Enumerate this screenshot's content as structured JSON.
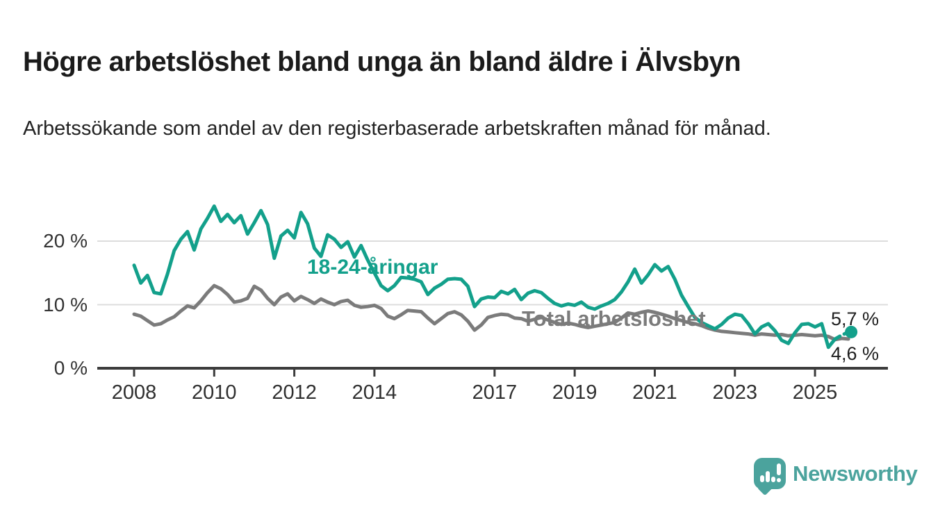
{
  "chart_data": {
    "type": "line",
    "title": "Högre arbetslöshet bland unga än bland äldre i Älvsbyn",
    "subtitle": "Arbetssökande som andel av den registerbaserade arbetskraften månad för månad.",
    "y_unit": "%",
    "ylim": [
      0,
      27.5
    ],
    "xlim": [
      2007.95,
      2026.2
    ],
    "grid": "horizontal gridlines at 10 and 20, baseline axis at 0",
    "legend_position": "inline labels on lines",
    "y_ticks": [
      {
        "value": 20,
        "label": "20 %"
      },
      {
        "value": 10,
        "label": "10 %"
      },
      {
        "value": 0,
        "label": "0 %"
      }
    ],
    "x_ticks": [
      {
        "year": 2008,
        "label": "2008"
      },
      {
        "year": 2010,
        "label": "2010"
      },
      {
        "year": 2012,
        "label": "2012"
      },
      {
        "year": 2014,
        "label": "2014"
      },
      {
        "year": 2017,
        "label": "2017"
      },
      {
        "year": 2019,
        "label": "2019"
      },
      {
        "year": 2021,
        "label": "2021"
      },
      {
        "year": 2023,
        "label": "2023"
      },
      {
        "year": 2025,
        "label": "2025"
      }
    ],
    "series": [
      {
        "name": "Total arbetslöshet",
        "color": "#7B7B7B",
        "start_year": 2008.0,
        "step_years": 0.16667,
        "end_label": "4,6 %",
        "end_dot": false,
        "dashed_from_index": -1,
        "values": [
          8.5,
          8.2,
          7.5,
          6.8,
          7.0,
          7.6,
          8.1,
          9.0,
          9.8,
          9.5,
          10.6,
          11.9,
          13.0,
          12.5,
          11.6,
          10.4,
          10.6,
          11.0,
          12.9,
          12.3,
          11.0,
          10.0,
          11.2,
          11.7,
          10.6,
          11.3,
          10.8,
          10.2,
          10.9,
          10.4,
          10.0,
          10.5,
          10.7,
          9.9,
          9.6,
          9.7,
          9.9,
          9.4,
          8.2,
          7.8,
          8.4,
          9.1,
          9.0,
          8.9,
          7.9,
          7.0,
          7.8,
          8.6,
          8.9,
          8.4,
          7.4,
          6.0,
          6.8,
          8.0,
          8.3,
          8.5,
          8.4,
          7.9,
          7.8,
          7.4,
          7.7,
          8.0,
          7.6,
          7.2,
          6.9,
          7.1,
          6.9,
          6.6,
          6.4,
          6.6,
          6.8,
          7.0,
          7.2,
          7.9,
          8.7,
          8.5,
          8.8,
          9.0,
          8.8,
          8.5,
          8.2,
          7.8,
          7.5,
          7.2,
          7.0,
          6.7,
          6.3,
          6.0,
          5.8,
          5.7,
          5.6,
          5.5,
          5.4,
          5.2,
          5.4,
          5.3,
          5.2,
          5.3,
          5.1,
          5.2,
          5.3,
          5.2,
          5.1,
          5.2,
          5.0,
          4.5,
          4.7,
          4.6
        ]
      },
      {
        "name": "18-24-åringar",
        "color": "#13A08B",
        "start_year": 2008.0,
        "step_years": 0.16667,
        "end_label": "5,7 %",
        "end_dot": true,
        "dashed_from_index": 105,
        "values": [
          16.2,
          13.4,
          14.6,
          11.9,
          11.7,
          14.8,
          18.5,
          20.3,
          21.5,
          18.6,
          21.9,
          23.6,
          25.5,
          23.1,
          24.2,
          22.9,
          24.0,
          21.1,
          22.9,
          24.8,
          22.6,
          17.3,
          20.8,
          21.7,
          20.5,
          24.5,
          22.7,
          18.9,
          17.6,
          21.0,
          20.3,
          19.0,
          19.9,
          17.5,
          19.3,
          17.0,
          15.0,
          13.0,
          12.2,
          13.0,
          14.3,
          14.2,
          14.0,
          13.6,
          11.6,
          12.6,
          13.2,
          14.0,
          14.1,
          14.0,
          12.9,
          9.7,
          10.9,
          11.2,
          11.1,
          12.1,
          11.7,
          12.4,
          10.8,
          11.8,
          12.2,
          11.9,
          11.0,
          10.2,
          9.8,
          10.1,
          9.9,
          10.4,
          9.6,
          9.3,
          9.8,
          10.2,
          10.8,
          12.0,
          13.6,
          15.6,
          13.4,
          14.7,
          16.3,
          15.3,
          16.0,
          14.0,
          11.5,
          9.7,
          8.0,
          7.2,
          6.7,
          6.2,
          6.9,
          7.9,
          8.5,
          8.3,
          7.0,
          5.4,
          6.5,
          7.0,
          5.9,
          4.4,
          3.9,
          5.6,
          6.9,
          7.0,
          6.5,
          7.0,
          3.3,
          4.6,
          5.2,
          5.7
        ]
      }
    ]
  },
  "branding": {
    "logo_text": "Newsworthy",
    "logo_color": "#4BA39D",
    "logo_icon": "bar-chart-speech-bubble"
  }
}
